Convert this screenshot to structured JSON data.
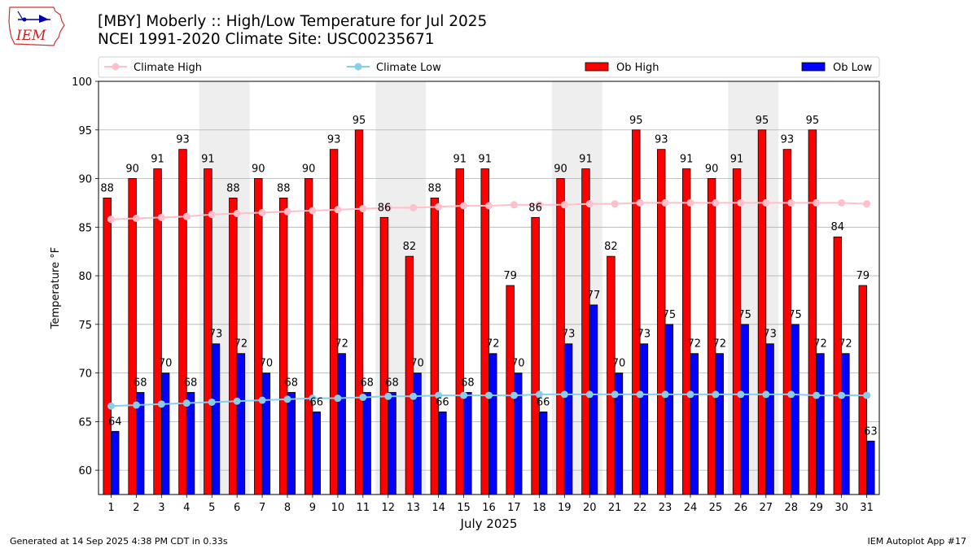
{
  "header": {
    "title_line1": "[MBY] Moberly :: High/Low Temperature for Jul 2025",
    "title_line2": "NCEI 1991-2020 Climate Site: USC00235671",
    "logo_text": "IEM"
  },
  "footer": {
    "left": "Generated at 14 Sep 2025 4:38 PM CDT in 0.33s",
    "right": "IEM Autoplot App #17"
  },
  "chart_data": {
    "type": "bar",
    "xlabel": "July 2025",
    "ylabel": "Temperature °F",
    "ylim": [
      57.5,
      100
    ],
    "yticks": [
      60,
      65,
      70,
      75,
      80,
      85,
      90,
      95,
      100
    ],
    "grid": "horizontal",
    "legend_placement": "top",
    "weekend_shading_days": [
      [
        5,
        6
      ],
      [
        12,
        13
      ],
      [
        19,
        20
      ],
      [
        26,
        27
      ]
    ],
    "categories": [
      "1",
      "2",
      "3",
      "4",
      "5",
      "6",
      "7",
      "8",
      "9",
      "10",
      "11",
      "12",
      "13",
      "14",
      "15",
      "16",
      "17",
      "18",
      "19",
      "20",
      "21",
      "22",
      "23",
      "24",
      "25",
      "26",
      "27",
      "28",
      "29",
      "30",
      "31"
    ],
    "series": [
      {
        "name": "Climate High",
        "kind": "line",
        "color": "#ffc0cb",
        "values": [
          85.8,
          85.9,
          86.0,
          86.1,
          86.3,
          86.4,
          86.5,
          86.6,
          86.7,
          86.8,
          86.9,
          87.0,
          87.0,
          87.1,
          87.2,
          87.2,
          87.3,
          87.3,
          87.3,
          87.4,
          87.4,
          87.5,
          87.5,
          87.5,
          87.5,
          87.5,
          87.5,
          87.5,
          87.5,
          87.5,
          87.4
        ]
      },
      {
        "name": "Climate Low",
        "kind": "line",
        "color": "#87ceeb",
        "values": [
          66.6,
          66.7,
          66.8,
          66.9,
          67.0,
          67.1,
          67.2,
          67.3,
          67.4,
          67.4,
          67.5,
          67.6,
          67.6,
          67.7,
          67.7,
          67.7,
          67.7,
          67.8,
          67.8,
          67.8,
          67.8,
          67.8,
          67.8,
          67.8,
          67.8,
          67.8,
          67.8,
          67.8,
          67.7,
          67.7,
          67.7
        ]
      },
      {
        "name": "Ob High",
        "kind": "bar",
        "color": "#ff0000",
        "values": [
          88,
          90,
          91,
          93,
          91,
          88,
          90,
          88,
          90,
          93,
          95,
          86,
          82,
          88,
          91,
          91,
          79,
          86,
          90,
          91,
          82,
          95,
          93,
          91,
          90,
          91,
          95,
          93,
          95,
          84,
          79
        ]
      },
      {
        "name": "Ob Low",
        "kind": "bar",
        "color": "#0000ff",
        "values": [
          64,
          68,
          70,
          68,
          73,
          72,
          70,
          68,
          66,
          72,
          68,
          68,
          70,
          66,
          68,
          72,
          70,
          66,
          73,
          77,
          70,
          73,
          75,
          72,
          72,
          75,
          73,
          75,
          72,
          72,
          63
        ]
      }
    ]
  }
}
